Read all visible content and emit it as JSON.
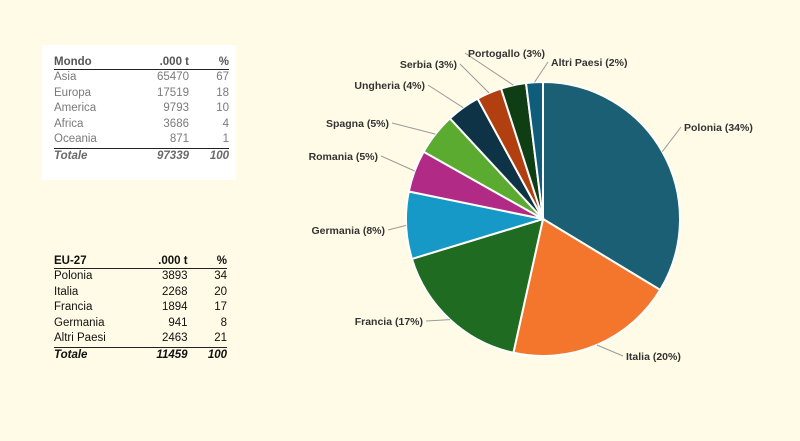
{
  "world_table": {
    "headers": [
      "Mondo",
      ".000 t",
      "%"
    ],
    "rows": [
      [
        "Asia",
        "65470",
        "67"
      ],
      [
        "Europa",
        "17519",
        "18"
      ],
      [
        "America",
        "9793",
        "10"
      ],
      [
        "Africa",
        "3686",
        "4"
      ],
      [
        "Oceania",
        "871",
        "1"
      ]
    ],
    "total": [
      "Totale",
      "97339",
      "100"
    ]
  },
  "eu_table": {
    "headers": [
      "EU-27",
      ".000 t",
      "%"
    ],
    "rows": [
      [
        "Polonia",
        "3893",
        "34"
      ],
      [
        "Italia",
        "2268",
        "20"
      ],
      [
        "Francia",
        "1894",
        "17"
      ],
      [
        "Germania",
        "941",
        "8"
      ],
      [
        "Altri Paesi",
        "2463",
        "21"
      ]
    ],
    "total": [
      "Totale",
      "11459",
      "100"
    ]
  },
  "chart_data": {
    "type": "pie",
    "slices": [
      {
        "label": "Polonia (34%)",
        "value": 34,
        "color": "#1b5f75"
      },
      {
        "label": "Italia (20%)",
        "value": 20,
        "color": "#f4762d"
      },
      {
        "label": "Francia (17%)",
        "value": 17,
        "color": "#1f6b22"
      },
      {
        "label": "Germania (8%)",
        "value": 8,
        "color": "#1699c6"
      },
      {
        "label": "Romania (5%)",
        "value": 5,
        "color": "#b02a86"
      },
      {
        "label": "Spagna (5%)",
        "value": 5,
        "color": "#5aab2f"
      },
      {
        "label": "Ungheria (4%)",
        "value": 4,
        "color": "#0e3346"
      },
      {
        "label": "Serbia (3%)",
        "value": 3,
        "color": "#b13f10"
      },
      {
        "label": "Portogallo (3%)",
        "value": 3,
        "color": "#0f3d14"
      },
      {
        "label": "Altri Paesi (2%)",
        "value": 2,
        "color": "#0f5d7a"
      }
    ]
  }
}
